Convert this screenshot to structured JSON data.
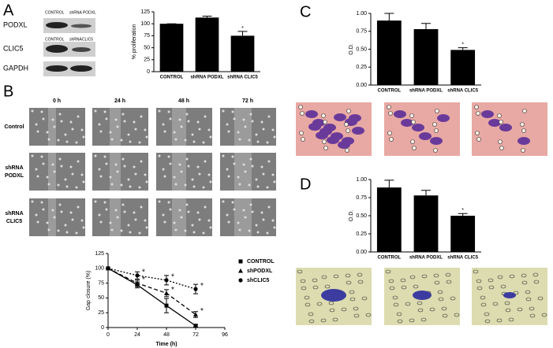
{
  "panel_letters": [
    "A",
    "B",
    "C",
    "D"
  ],
  "blot": {
    "headers": [
      [
        "CONTROL",
        "shRNA PODXL"
      ],
      [
        "CONTROL",
        "shRNACLIC5"
      ]
    ],
    "rows": [
      "PODXL",
      "CLIC5",
      "GAPDH"
    ]
  },
  "scratch": {
    "columns": [
      "0 h",
      "24 h",
      "48 h",
      "72 h"
    ],
    "rows": [
      [
        "Control"
      ],
      [
        "shRNA",
        "PODXL"
      ],
      [
        "shRNA",
        "CLIC5"
      ]
    ]
  },
  "chart_data": [
    {
      "type": "bar",
      "ylabel": "% proliferation",
      "categories": [
        "CONTROL",
        "shRNA PODXL",
        "shRNA CLIC5"
      ],
      "values": [
        100,
        113,
        75
      ],
      "errors": [
        0,
        3,
        9
      ],
      "significance": [
        null,
        null,
        "*"
      ],
      "color": "#000000",
      "ylim": [
        0,
        125
      ],
      "yticks": [
        0,
        25,
        50,
        75,
        100,
        125
      ]
    },
    {
      "type": "bar",
      "ylabel": "O.D.",
      "categories": [
        "CONTROL",
        "shRNA PODXL",
        "shRNA CLIC5"
      ],
      "values": [
        0.9,
        0.78,
        0.49
      ],
      "errors": [
        0.1,
        0.08,
        0.03
      ],
      "significance": [
        null,
        null,
        "*"
      ],
      "color": "#000000",
      "ylim": [
        0,
        1
      ],
      "yticks": [
        {
          "value": 0,
          "label": "0.00"
        },
        {
          "value": 0.25,
          "label": "0.25"
        },
        {
          "value": 0.5,
          "label": "0.50"
        },
        {
          "value": 0.75,
          "label": "0.75"
        },
        {
          "value": 1,
          "label": "1.00"
        }
      ]
    },
    {
      "type": "bar",
      "ylabel": "O.D.",
      "categories": [
        "CONTROL",
        "shRNA PODXL",
        "shRNA CLIC5"
      ],
      "values": [
        0.89,
        0.78,
        0.5
      ],
      "errors": [
        0.1,
        0.07,
        0.03
      ],
      "significance": [
        null,
        null,
        "*"
      ],
      "color": "#000000",
      "ylim": [
        0,
        1
      ],
      "yticks": [
        {
          "value": 0,
          "label": "0.00"
        },
        {
          "value": 0.25,
          "label": "0.25"
        },
        {
          "value": 0.5,
          "label": "0.50"
        },
        {
          "value": 0.75,
          "label": "0.75"
        },
        {
          "value": 1,
          "label": "1.00"
        }
      ]
    },
    {
      "type": "line",
      "xlabel": "Time (h)",
      "ylabel": "Gap closure (%)",
      "x": [
        0,
        24,
        48,
        72
      ],
      "series": [
        {
          "name": "CONTROL",
          "color": "#000000",
          "marker": "square",
          "dash": "solid",
          "values": [
            100,
            72,
            37,
            3
          ],
          "errors": [
            0,
            5,
            12,
            2
          ],
          "significance": [
            null,
            null,
            null,
            null
          ]
        },
        {
          "name": "shPODXL",
          "color": "#000000",
          "marker": "triangle",
          "dash": "dashed",
          "values": [
            100,
            75,
            58,
            22
          ],
          "errors": [
            0,
            5,
            6,
            5
          ],
          "significance": [
            null,
            "*",
            "*",
            "*"
          ]
        },
        {
          "name": "shCLIC5",
          "color": "#000000",
          "marker": "circle",
          "dash": "dotted",
          "values": [
            100,
            88,
            80,
            65
          ],
          "errors": [
            0,
            6,
            8,
            8
          ],
          "significance": [
            null,
            "*",
            "*",
            "*"
          ]
        }
      ],
      "xlim": [
        0,
        96
      ],
      "xticks": [
        0,
        24,
        48,
        72,
        96
      ],
      "ylim": [
        0,
        125
      ],
      "yticks": [
        0,
        25,
        50,
        75,
        100,
        125
      ],
      "legend": "right"
    }
  ]
}
